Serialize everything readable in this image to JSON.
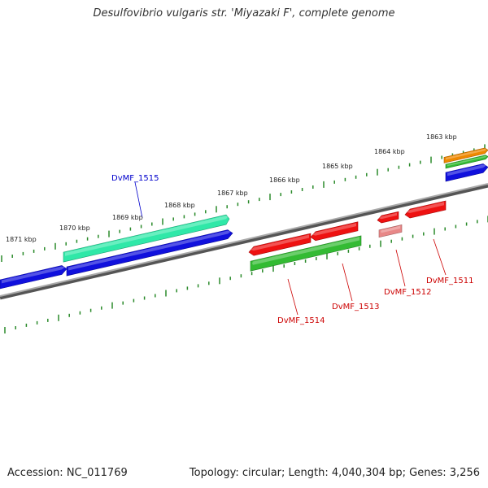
{
  "title": "Desulfovibrio vulgaris str. 'Miyazaki F', complete genome",
  "footer": {
    "accession": "Accession: NC_011769",
    "summary": "Topology: circular; Length: 4,040,304 bp; Genes: 3,256"
  },
  "colors": {
    "backbone": "#888888",
    "ticks": "#2a8a2a",
    "forward_blue": "#1010dd",
    "forward_cyan": "#2fe8a8",
    "reverse_red": "#ee1111",
    "reverse_green": "#33bb33",
    "pink": "#e88888",
    "orange": "#ee8800",
    "label_blue": "#0000cc",
    "label_red": "#cc0000"
  },
  "chart_data": {
    "type": "linear-genome-map",
    "kbp_labels": [
      "1863 kbp",
      "1864 kbp",
      "1865 kbp",
      "1866 kbp",
      "1867 kbp",
      "1868 kbp",
      "1869 kbp",
      "1870 kbp",
      "1871 kbp"
    ],
    "genes": [
      {
        "label": "DvMF_1515",
        "strand": "+",
        "color": "cyan"
      },
      {
        "label": "DvMF_1514",
        "strand": "-",
        "color": "green"
      },
      {
        "label": "DvMF_1513",
        "strand": "-",
        "color": "red"
      },
      {
        "label": "DvMF_1512",
        "strand": "-",
        "color": "red"
      },
      {
        "label": "DvMF_1511",
        "strand": "-",
        "color": "red"
      }
    ]
  }
}
